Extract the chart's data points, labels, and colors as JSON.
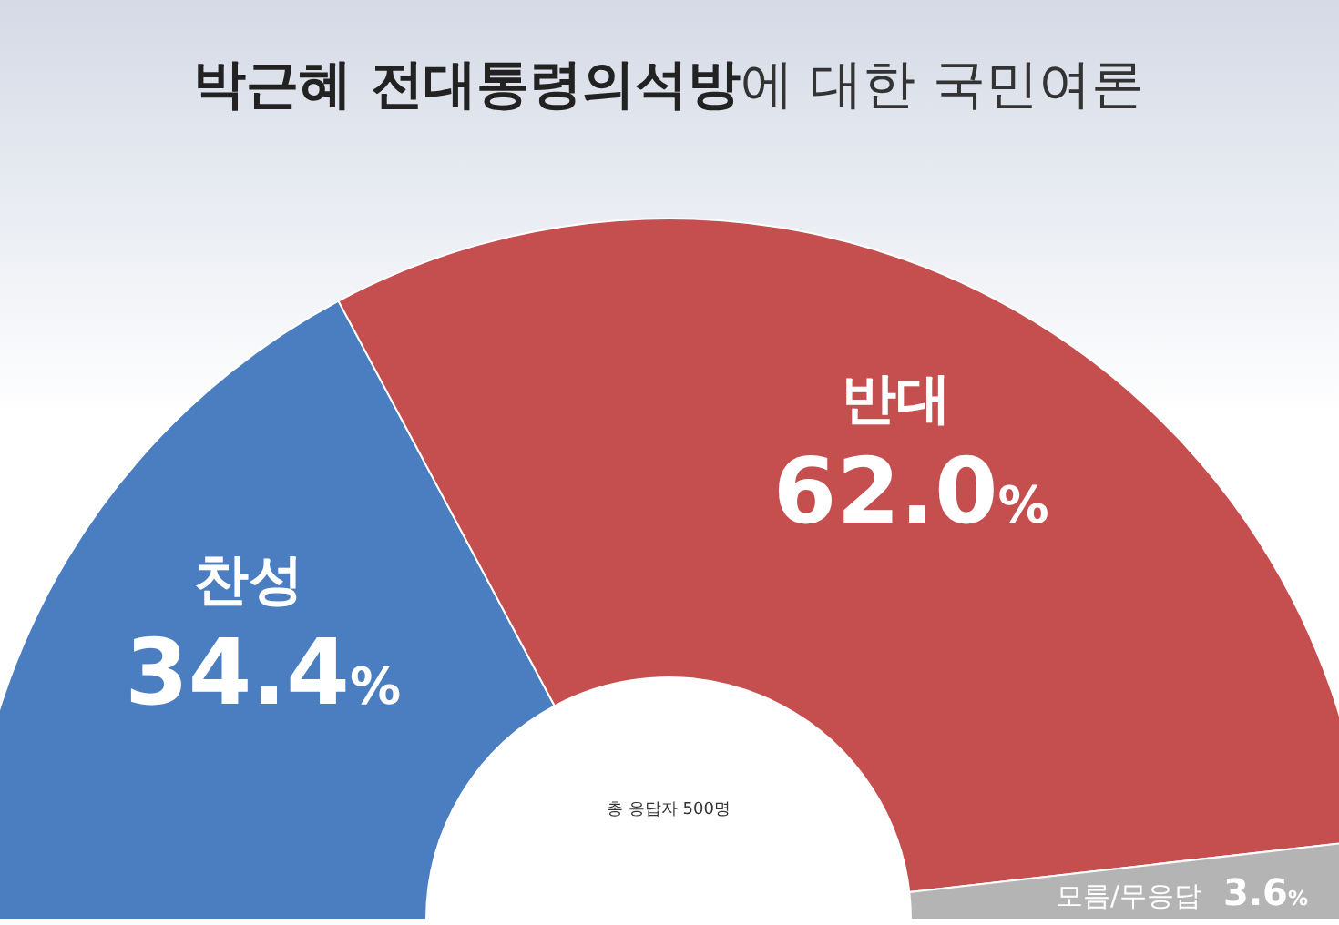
{
  "chart_data": {
    "type": "donut",
    "title": "**박근혜 전대통령의석방**에 대한 국민여론",
    "categories": [
      "찬성",
      "반대",
      "모름/무응답"
    ],
    "values": [
      34.4,
      62.0,
      3.6
    ],
    "value_labels": [
      "34.4%",
      "62.0%",
      "3.6%"
    ],
    "colors": [
      "#4b7ec0",
      "#c54e4e",
      "#b4b4b4"
    ],
    "annotations": [
      "총 응답자 500명"
    ]
  }
}
